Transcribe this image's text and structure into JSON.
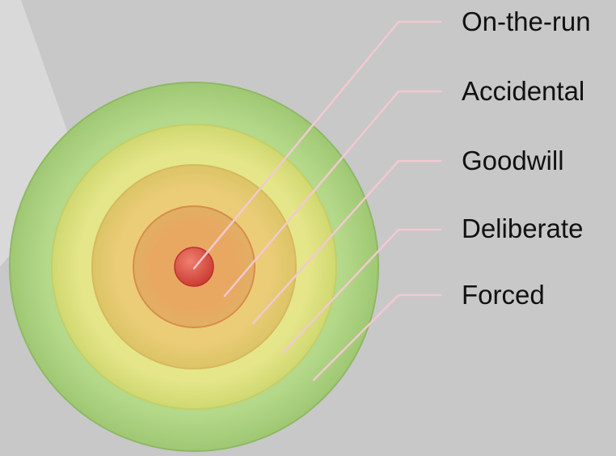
{
  "diagram": {
    "rings": [
      {
        "label": "On-the-run",
        "color": "#d64a3c"
      },
      {
        "label": "Accidental",
        "color": "#e39a55"
      },
      {
        "label": "Goodwill",
        "color": "#e6c46a"
      },
      {
        "label": "Deliberate",
        "color": "#dfe07a"
      },
      {
        "label": "Forced",
        "color": "#a9d07c"
      }
    ],
    "leader_line_color": "#f2c9d0",
    "background_color": "#c8c8c8"
  }
}
